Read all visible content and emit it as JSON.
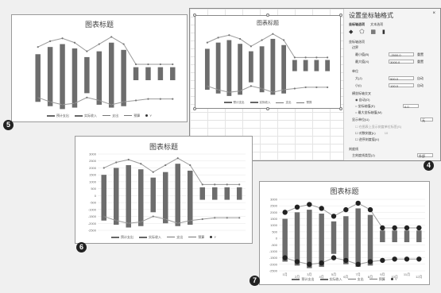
{
  "step_numbers": [
    "5",
    "6",
    "7",
    "4"
  ],
  "colors": {
    "bar": "#6d6d6d",
    "line": "#9a9a9a",
    "marker": "#222222"
  },
  "excel": {
    "sidebar": {
      "title": "设置坐标轴格式",
      "tab_axis_options": "坐标轴选项",
      "tab_text_options": "文本选项",
      "section_axis": "坐标轴选项",
      "bounds": "边界",
      "min_label": "最小值(B)",
      "min_value": "-2500.0",
      "max_label": "最大值(X)",
      "max_value": "3000.0",
      "reset": "重置",
      "auto": "自动",
      "units": "单位",
      "major_label": "大(J)",
      "major_value": "500.0",
      "minor_label": "小(I)",
      "minor_value": "100.0",
      "cross_label": "横坐标轴交叉",
      "cross_auto": "自动(O)",
      "cross_value": "坐标轴值(E)",
      "cross_value_input": "0.0",
      "cross_max": "最大坐标轴值(M)",
      "display_units": "显示单位(U)",
      "display_units_value": "无",
      "show_units_label": "在图表上显示刻度单位标签(S)",
      "log_scale": "对数刻度(L)",
      "log_base": "10",
      "reverse": "逆序刻度值(V)",
      "tick_marks": "刻度线",
      "major_tick_type": "主刻度线类型(J)",
      "major_tick_value": "外部"
    }
  },
  "charts": {
    "c5": {
      "title": "图表标题"
    },
    "c6": {
      "title": "图表标题"
    },
    "c7": {
      "title": "图表标题"
    },
    "c4": {
      "title": "图表标题"
    }
  },
  "legend": {
    "expense": "预计支出",
    "income": "实际收入",
    "actual": "支出",
    "estimate": "预算",
    "y": "Y"
  },
  "chart_data": [
    {
      "type": "bar",
      "note": "floating column chart with two line series",
      "categories": [
        "1月",
        "2月",
        "3月",
        "4月",
        "5月",
        "6月",
        "7月",
        "8月",
        "9月",
        "10月",
        "11月",
        "12月"
      ],
      "yticks": [
        3000,
        2500,
        2000,
        1500,
        1000,
        500,
        0,
        -500,
        -1000,
        -1500,
        -2000,
        -2500
      ],
      "ylim": [
        -2500,
        3000
      ],
      "bars": [
        {
          "top": 1500,
          "bottom": -1800
        },
        {
          "top": 2000,
          "bottom": -2100
        },
        {
          "top": 2200,
          "bottom": -2300
        },
        {
          "top": 1900,
          "bottom": -2200
        },
        {
          "top": 1300,
          "bottom": -1200
        },
        {
          "top": 1700,
          "bottom": -2000
        },
        {
          "top": 2300,
          "bottom": -2200
        },
        {
          "top": 1800,
          "bottom": -2100
        },
        {
          "top": 600,
          "bottom": -300
        },
        {
          "top": 600,
          "bottom": -300
        },
        {
          "top": 600,
          "bottom": -300
        },
        {
          "top": 600,
          "bottom": -300
        }
      ],
      "series": [
        {
          "name": "预算",
          "values": [
            2000,
            2400,
            2600,
            2300,
            1700,
            2200,
            2700,
            2200,
            800,
            800,
            800,
            800
          ]
        },
        {
          "name": "支出",
          "values": [
            -1500,
            -1800,
            -2000,
            -1900,
            -1500,
            -1700,
            -2000,
            -1800,
            -1700,
            -1600,
            -1600,
            -1600
          ]
        }
      ]
    }
  ]
}
